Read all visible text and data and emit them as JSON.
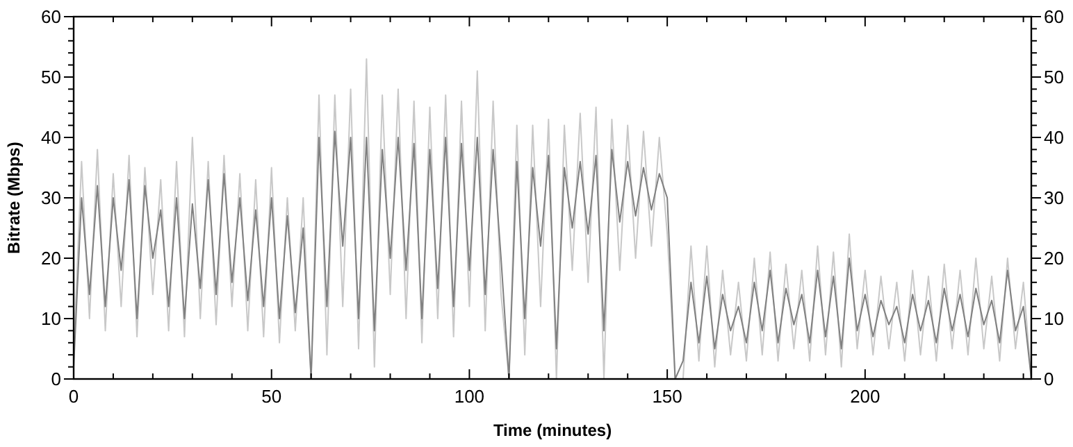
{
  "chart_data": {
    "type": "line",
    "xlabel": "Time (minutes)",
    "ylabel": "Bitrate (Mbps)",
    "xlim": [
      0,
      242
    ],
    "xticks": [
      0,
      {
        "value": 10,
        "label": null
      },
      {
        "value": 20,
        "label": null
      },
      {
        "value": 30,
        "label": null
      },
      {
        "value": 40,
        "label": null
      },
      50,
      {
        "value": 60,
        "label": null
      },
      {
        "value": 70,
        "label": null
      },
      {
        "value": 80,
        "label": null
      },
      {
        "value": 90,
        "label": null
      },
      100,
      {
        "value": 110,
        "label": null
      },
      {
        "value": 120,
        "label": null
      },
      {
        "value": 130,
        "label": null
      },
      {
        "value": 140,
        "label": null
      },
      150,
      {
        "value": 160,
        "label": null
      },
      {
        "value": 170,
        "label": null
      },
      {
        "value": 180,
        "label": null
      },
      {
        "value": 190,
        "label": null
      },
      200,
      {
        "value": 210,
        "label": null
      },
      {
        "value": 220,
        "label": null
      },
      {
        "value": 230,
        "label": null
      },
      {
        "value": 240,
        "label": null
      }
    ],
    "ylim": [
      0,
      60
    ],
    "yticks": [
      0,
      {
        "value": 2,
        "label": null
      },
      {
        "value": 4,
        "label": null
      },
      {
        "value": 6,
        "label": null
      },
      {
        "value": 8,
        "label": null
      },
      10,
      {
        "value": 12,
        "label": null
      },
      {
        "value": 14,
        "label": null
      },
      {
        "value": 16,
        "label": null
      },
      {
        "value": 18,
        "label": null
      },
      20,
      {
        "value": 22,
        "label": null
      },
      {
        "value": 24,
        "label": null
      },
      {
        "value": 26,
        "label": null
      },
      {
        "value": 28,
        "label": null
      },
      30,
      {
        "value": 32,
        "label": null
      },
      {
        "value": 34,
        "label": null
      },
      {
        "value": 36,
        "label": null
      },
      {
        "value": 38,
        "label": null
      },
      40,
      {
        "value": 42,
        "label": null
      },
      {
        "value": 44,
        "label": null
      },
      {
        "value": 46,
        "label": null
      },
      {
        "value": 48,
        "label": null
      },
      50,
      {
        "value": 52,
        "label": null
      },
      {
        "value": 54,
        "label": null
      },
      {
        "value": 56,
        "label": null
      },
      {
        "value": 58,
        "label": null
      },
      60
    ],
    "y2lim": [
      0,
      60
    ],
    "y2ticks": [
      0,
      {
        "value": 2,
        "label": null
      },
      {
        "value": 4,
        "label": null
      },
      {
        "value": 6,
        "label": null
      },
      {
        "value": 8,
        "label": null
      },
      10,
      {
        "value": 12,
        "label": null
      },
      {
        "value": 14,
        "label": null
      },
      {
        "value": 16,
        "label": null
      },
      {
        "value": 18,
        "label": null
      },
      20,
      {
        "value": 22,
        "label": null
      },
      {
        "value": 24,
        "label": null
      },
      {
        "value": 26,
        "label": null
      },
      {
        "value": 28,
        "label": null
      },
      30,
      {
        "value": 32,
        "label": null
      },
      {
        "value": 34,
        "label": null
      },
      {
        "value": 36,
        "label": null
      },
      {
        "value": 38,
        "label": null
      },
      40,
      {
        "value": 42,
        "label": null
      },
      {
        "value": 44,
        "label": null
      },
      {
        "value": 46,
        "label": null
      },
      {
        "value": 48,
        "label": null
      },
      50,
      {
        "value": 52,
        "label": null
      },
      {
        "value": 54,
        "label": null
      },
      {
        "value": 56,
        "label": null
      },
      {
        "value": 58,
        "label": null
      },
      60
    ],
    "grid": false,
    "marker": "none",
    "line_style": "solid",
    "x": [
      0,
      2,
      4,
      6,
      8,
      10,
      12,
      14,
      16,
      18,
      20,
      22,
      24,
      26,
      28,
      30,
      32,
      34,
      36,
      38,
      40,
      42,
      44,
      46,
      48,
      50,
      52,
      54,
      56,
      58,
      60,
      62,
      64,
      66,
      68,
      70,
      72,
      74,
      76,
      78,
      80,
      82,
      84,
      86,
      88,
      90,
      92,
      94,
      96,
      98,
      100,
      102,
      104,
      106,
      108,
      110,
      112,
      114,
      116,
      118,
      120,
      122,
      124,
      126,
      128,
      130,
      132,
      134,
      136,
      138,
      140,
      142,
      144,
      146,
      148,
      150,
      152,
      154,
      156,
      158,
      160,
      162,
      164,
      166,
      168,
      170,
      172,
      174,
      176,
      178,
      180,
      182,
      184,
      186,
      188,
      190,
      192,
      194,
      196,
      198,
      200,
      202,
      204,
      206,
      208,
      210,
      212,
      214,
      216,
      218,
      220,
      222,
      224,
      226,
      228,
      230,
      232,
      234,
      236,
      238,
      240,
      242
    ],
    "series": [
      {
        "color": "#c8c8c8",
        "values": [
          4,
          36,
          10,
          38,
          8,
          34,
          12,
          37,
          7,
          35,
          14,
          33,
          8,
          36,
          7,
          40,
          10,
          36,
          9,
          37,
          12,
          34,
          8,
          33,
          7,
          35,
          6,
          30,
          8,
          30,
          0,
          47,
          4,
          47,
          12,
          48,
          5,
          53,
          2,
          47,
          14,
          48,
          10,
          46,
          6,
          45,
          10,
          47,
          7,
          46,
          12,
          51,
          8,
          46,
          14,
          0,
          42,
          4,
          42,
          12,
          43,
          0,
          42,
          18,
          44,
          16,
          45,
          0,
          43,
          18,
          42,
          20,
          41,
          22,
          40,
          24,
          0,
          0,
          22,
          3,
          22,
          2,
          18,
          4,
          16,
          3,
          20,
          4,
          21,
          3,
          19,
          5,
          18,
          3,
          22,
          4,
          21,
          2,
          24,
          5,
          18,
          4,
          17,
          5,
          16,
          3,
          18,
          4,
          17,
          3,
          19,
          5,
          18,
          4,
          20,
          5,
          17,
          3,
          20,
          5,
          16,
          0
        ]
      },
      {
        "color": "#808080",
        "values": [
          2,
          30,
          14,
          32,
          12,
          30,
          18,
          33,
          10,
          32,
          20,
          28,
          12,
          30,
          10,
          29,
          15,
          33,
          14,
          34,
          16,
          30,
          13,
          28,
          12,
          30,
          10,
          27,
          11,
          25,
          0,
          40,
          12,
          41,
          22,
          40,
          10,
          40,
          8,
          38,
          20,
          40,
          18,
          39,
          10,
          38,
          15,
          40,
          12,
          39,
          18,
          40,
          14,
          38,
          20,
          0,
          36,
          10,
          35,
          22,
          37,
          5,
          35,
          25,
          36,
          24,
          37,
          8,
          38,
          26,
          36,
          27,
          35,
          28,
          34,
          30,
          0,
          3,
          16,
          6,
          17,
          5,
          14,
          8,
          12,
          6,
          16,
          8,
          18,
          6,
          15,
          9,
          14,
          6,
          18,
          7,
          17,
          5,
          20,
          8,
          14,
          7,
          13,
          9,
          12,
          6,
          14,
          8,
          13,
          6,
          15,
          8,
          14,
          7,
          15,
          9,
          13,
          6,
          18,
          8,
          12,
          0
        ]
      }
    ]
  }
}
